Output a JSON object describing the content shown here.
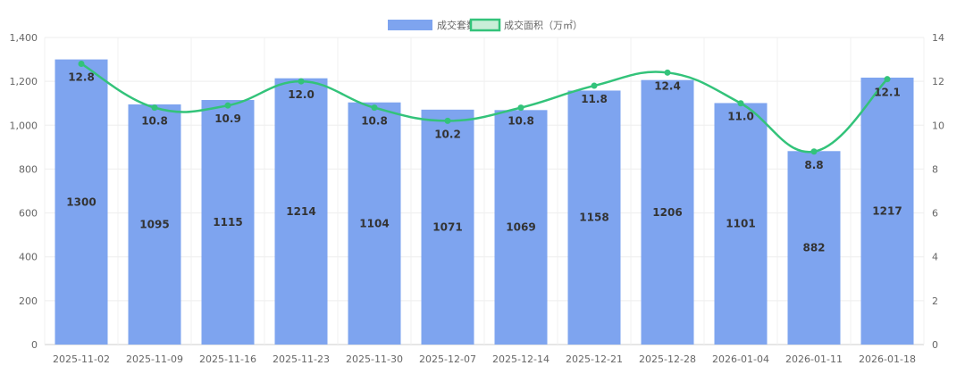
{
  "chart_data": {
    "type": "bar",
    "categories": [
      "2025-11-02",
      "2025-11-09",
      "2025-11-16",
      "2025-11-23",
      "2025-11-30",
      "2025-12-07",
      "2025-12-14",
      "2025-12-21",
      "2025-12-28",
      "2026-01-04",
      "2026-01-11",
      "2026-01-18"
    ],
    "series": [
      {
        "name": "成交套数",
        "type": "bar",
        "axis": "left",
        "color": "#7ea4ef",
        "values": [
          1300,
          1095,
          1115,
          1214,
          1104,
          1071,
          1069,
          1158,
          1206,
          1101,
          882,
          1217
        ],
        "labels": [
          "1300",
          "1095",
          "1115",
          "1214",
          "1104",
          "1071",
          "1069",
          "1158",
          "1206",
          "1101",
          "882",
          "1217"
        ]
      },
      {
        "name": "成交面积（万㎡）",
        "type": "line",
        "axis": "right",
        "color": "#33c37a",
        "values": [
          12.8,
          10.8,
          10.9,
          12.0,
          10.8,
          10.2,
          10.8,
          11.8,
          12.4,
          11.0,
          8.8,
          12.1
        ],
        "labels": [
          "12.8",
          "10.8",
          "10.9",
          "12.0",
          "10.8",
          "10.2",
          "10.8",
          "11.8",
          "12.4",
          "11.0",
          "8.8",
          "12.1"
        ]
      }
    ],
    "y_left": {
      "min": 0,
      "max": 1400,
      "ticks": [
        "0",
        "200",
        "400",
        "600",
        "800",
        "1,000",
        "1,200",
        "1,400"
      ]
    },
    "y_right": {
      "min": 0,
      "max": 14,
      "ticks": [
        "0",
        "2",
        "4",
        "6",
        "8",
        "10",
        "12",
        "14"
      ]
    },
    "grid": true,
    "legend_position": "top-center",
    "title": "",
    "xlabel": "",
    "ylabel": ""
  }
}
